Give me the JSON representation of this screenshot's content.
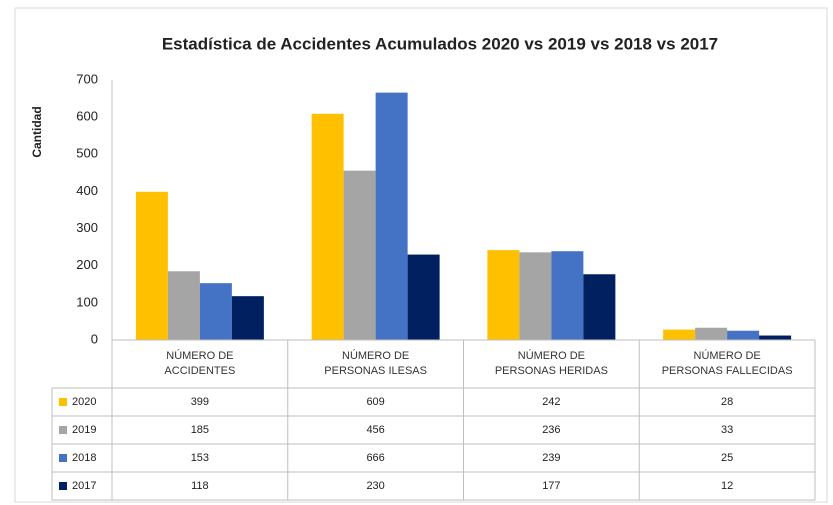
{
  "chart_data": {
    "type": "bar",
    "title": "Estadística de Accidentes Acumulados 2020 vs 2019 vs 2018 vs 2017",
    "y_label": "Cantidad",
    "categories": [
      "NÚMERO DE\nACCIDENTES",
      "NÚMERO DE\nPERSONAS ILESAS",
      "NÚMERO DE\nPERSONAS HERIDAS",
      "NÚMERO DE\nPERSONAS FALLECIDAS"
    ],
    "series": [
      {
        "name": "2020",
        "color": "#ffc000",
        "values": [
          399,
          609,
          242,
          28
        ]
      },
      {
        "name": "2019",
        "color": "#a5a5a5",
        "values": [
          185,
          456,
          236,
          33
        ]
      },
      {
        "name": "2018",
        "color": "#4472c4",
        "values": [
          153,
          666,
          239,
          25
        ]
      },
      {
        "name": "2017",
        "color": "#002060",
        "values": [
          118,
          230,
          177,
          12
        ]
      }
    ],
    "ylim": [
      0,
      700
    ],
    "yticks": [
      0,
      100,
      200,
      300,
      400,
      500,
      600,
      700
    ],
    "grid": false
  }
}
